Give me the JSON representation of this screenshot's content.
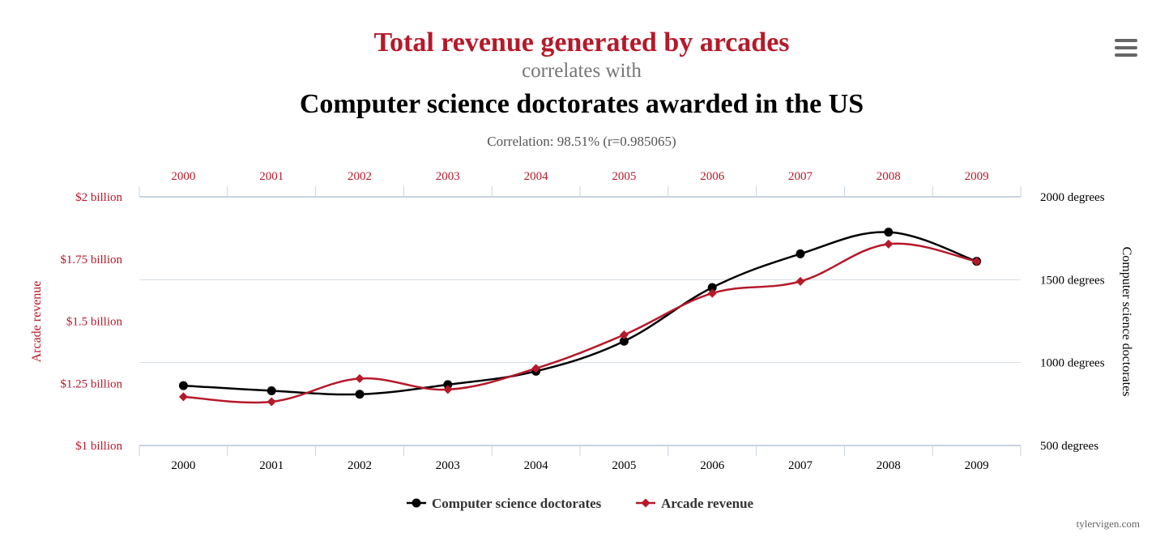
{
  "menu_icon": "hamburger-menu-icon",
  "credit": "tylervigen.com",
  "colors": {
    "primary": "#000000",
    "secondary": "#b5192a",
    "subtitle_gray": "#777777",
    "grid": "#d6dde6"
  },
  "chart_data": {
    "type": "line",
    "title": "Total revenue generated by arcades",
    "correlates_text": "correlates with",
    "title2": "Computer science doctorates awarded in the US",
    "correlation_text": "Correlation: 98.51% (r=0.985065)",
    "categories": [
      "2000",
      "2001",
      "2002",
      "2003",
      "2004",
      "2005",
      "2006",
      "2007",
      "2008",
      "2009"
    ],
    "left_axis": {
      "label": "Arcade revenue",
      "ylim": [
        1.0,
        2.0
      ],
      "ticks": [
        1.0,
        1.25,
        1.5,
        1.75,
        2.0
      ],
      "tick_labels": [
        "$1 billion",
        "$1.25 billion",
        "$1.5 billion",
        "$1.75 billion",
        "$2 billion"
      ]
    },
    "right_axis": {
      "label": "Computer science doctorates",
      "ylim": [
        500,
        2000
      ],
      "ticks": [
        500,
        1000,
        1500,
        2000
      ],
      "tick_labels": [
        "500 degrees",
        "1000 degrees",
        "1500 degrees",
        "2000 degrees"
      ]
    },
    "series": [
      {
        "name": "Computer science doctorates",
        "axis": "right",
        "color": "#000000",
        "marker": "circle",
        "values": [
          861,
          830,
          809,
          867,
          948,
          1129,
          1453,
          1656,
          1787,
          1611
        ]
      },
      {
        "name": "Arcade revenue",
        "axis": "left",
        "color": "#b5192a",
        "marker": "diamond",
        "values": [
          1.196,
          1.176,
          1.269,
          1.225,
          1.31,
          1.445,
          1.612,
          1.66,
          1.81,
          1.74
        ]
      }
    ],
    "legend_position": "bottom-center",
    "grid": true
  }
}
